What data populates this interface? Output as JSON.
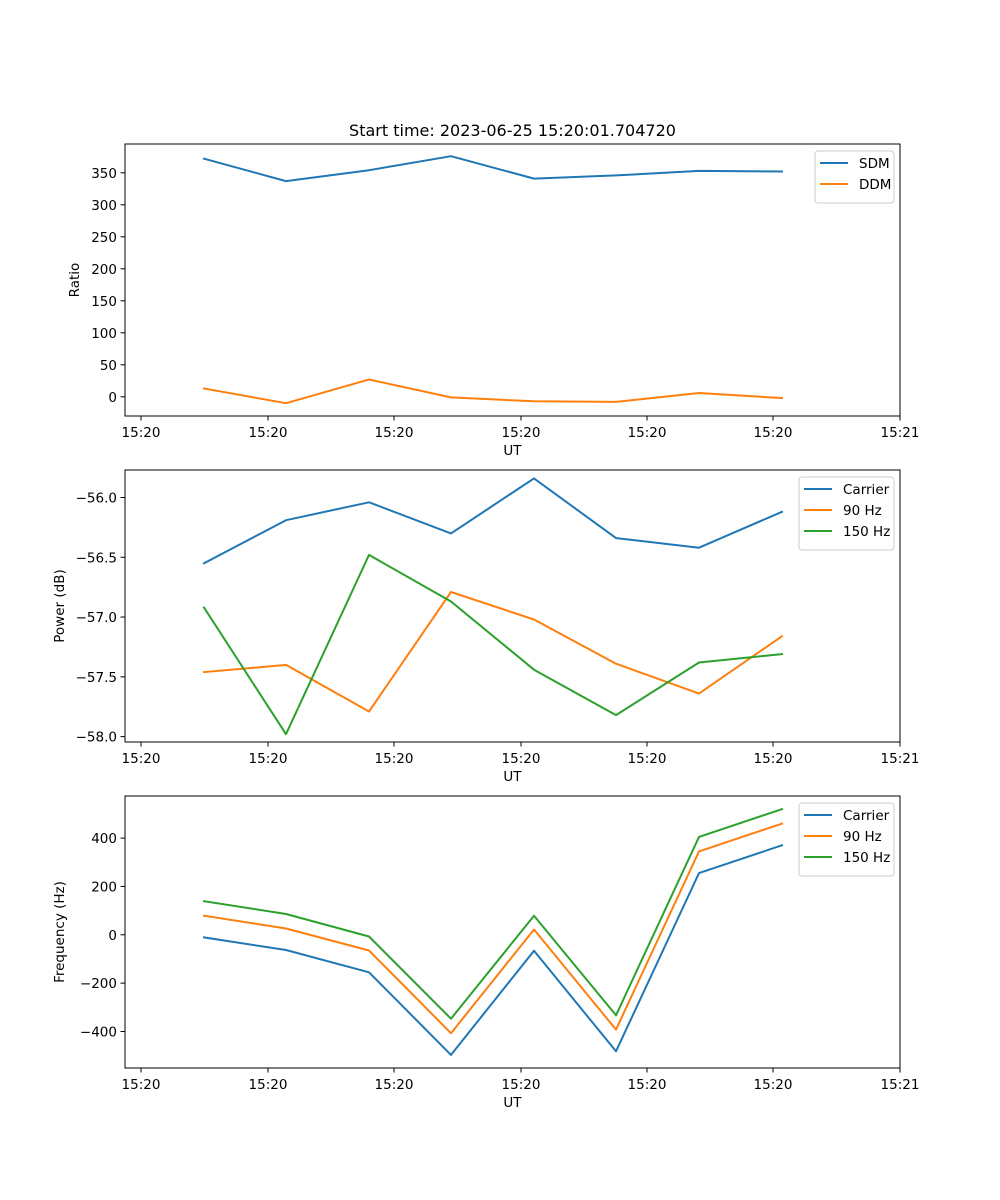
{
  "figure_title": "Start time: 2023-06-25 15:20:01.704720",
  "chart_data": [
    {
      "type": "line",
      "title": "Start time: 2023-06-25 15:20:01.704720",
      "xlabel": "UT",
      "ylabel": "Ratio",
      "xtick_labels": [
        "15:20",
        "15:20",
        "15:20",
        "15:20",
        "15:20",
        "15:20",
        "15:20",
        "15:21"
      ],
      "yticks": [
        0,
        50,
        100,
        150,
        200,
        250,
        300,
        350
      ],
      "ylim": [
        -30,
        395
      ],
      "x_points": 8,
      "legend_position": "top-right",
      "grid": false,
      "series": [
        {
          "name": "SDM",
          "color": "#1f77b4",
          "values": [
            372,
            337,
            354,
            376,
            341,
            346,
            353,
            352
          ]
        },
        {
          "name": "DDM",
          "color": "#ff7f0e",
          "values": [
            13,
            -10,
            27,
            -1,
            -7,
            -8,
            6,
            -2
          ]
        }
      ]
    },
    {
      "type": "line",
      "title": "",
      "xlabel": "UT",
      "ylabel": "Power (dB)",
      "xtick_labels": [
        "15:20",
        "15:20",
        "15:20",
        "15:20",
        "15:20",
        "15:20",
        "15:20",
        "15:21"
      ],
      "yticks": [
        -58.0,
        -57.5,
        -57.0,
        -56.5,
        -56.0
      ],
      "ytick_labels": [
        "−58.0",
        "−57.5",
        "−57.0",
        "−56.5",
        "−56.0"
      ],
      "ylim": [
        -58.045,
        -55.77
      ],
      "x_points": 8,
      "legend_position": "top-right",
      "grid": false,
      "series": [
        {
          "name": "Carrier",
          "color": "#1f77b4",
          "values": [
            -56.55,
            -56.19,
            -56.04,
            -56.3,
            -55.84,
            -56.34,
            -56.42,
            -56.12
          ]
        },
        {
          "name": "90 Hz",
          "color": "#ff7f0e",
          "values": [
            -57.46,
            -57.4,
            -57.79,
            -56.79,
            -57.02,
            -57.39,
            -57.64,
            -57.16
          ]
        },
        {
          "name": "150 Hz",
          "color": "#2ca02c",
          "values": [
            -56.92,
            -57.98,
            -56.48,
            -56.87,
            -57.44,
            -57.82,
            -57.38,
            -57.31
          ]
        }
      ]
    },
    {
      "type": "line",
      "title": "",
      "xlabel": "UT",
      "ylabel": "Frequency (Hz)",
      "xtick_labels": [
        "15:20",
        "15:20",
        "15:20",
        "15:20",
        "15:20",
        "15:20",
        "15:20",
        "15:21"
      ],
      "yticks": [
        -400,
        -200,
        0,
        200,
        400
      ],
      "ytick_labels": [
        "−400",
        "−200",
        "0",
        "200",
        "400"
      ],
      "ylim": [
        -551,
        574
      ],
      "x_points": 8,
      "legend_position": "top-right",
      "grid": false,
      "series": [
        {
          "name": "Carrier",
          "color": "#1f77b4",
          "values": [
            -11,
            -63,
            -155,
            -497,
            -66,
            -482,
            255,
            370
          ]
        },
        {
          "name": "90 Hz",
          "color": "#ff7f0e",
          "values": [
            79,
            26,
            -65,
            -407,
            22,
            -392,
            345,
            460
          ]
        },
        {
          "name": "150 Hz",
          "color": "#2ca02c",
          "values": [
            139,
            86,
            -7,
            -347,
            79,
            -333,
            405,
            520
          ]
        }
      ]
    }
  ]
}
